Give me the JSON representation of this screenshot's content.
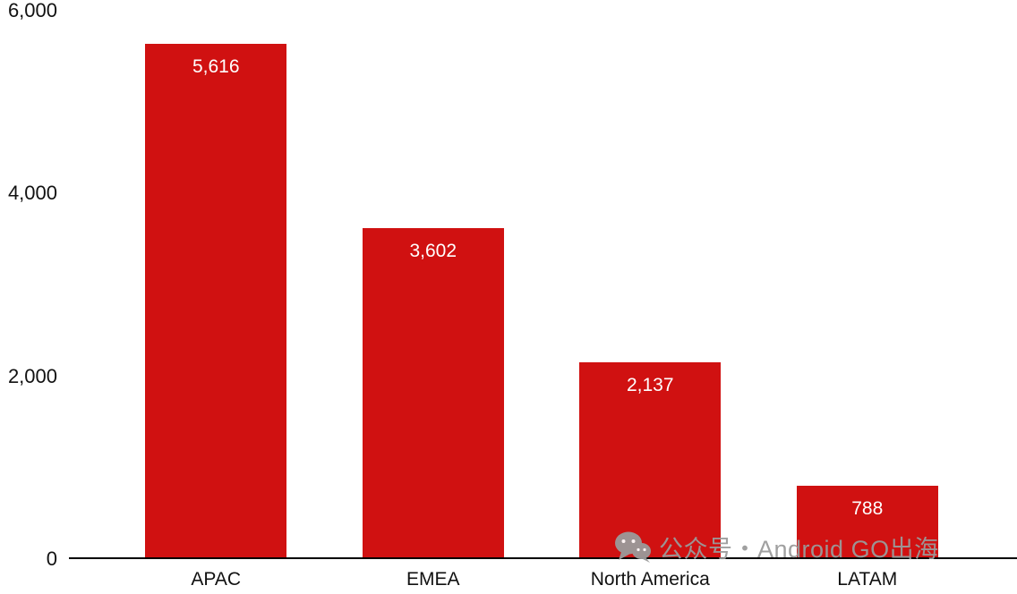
{
  "chart_data": {
    "type": "bar",
    "categories": [
      "APAC",
      "EMEA",
      "North America",
      "LATAM"
    ],
    "values": [
      5616,
      3602,
      2137,
      788
    ],
    "value_labels": [
      "5,616",
      "3,602",
      "2,137",
      "788"
    ],
    "y_ticks": [
      0,
      2000,
      4000,
      6000
    ],
    "y_tick_labels": [
      "0",
      "2,000",
      "4,000",
      "6,000"
    ],
    "ylim": [
      0,
      6000
    ],
    "title": "",
    "xlabel": "",
    "ylabel": "",
    "grid": false,
    "legend": "none",
    "bar_color": "#d01111",
    "value_label_color": "#ffffff",
    "axis_color": "#000000"
  },
  "watermark": {
    "text": "公众号・Android GO出海",
    "color": "#9b9b9b"
  }
}
